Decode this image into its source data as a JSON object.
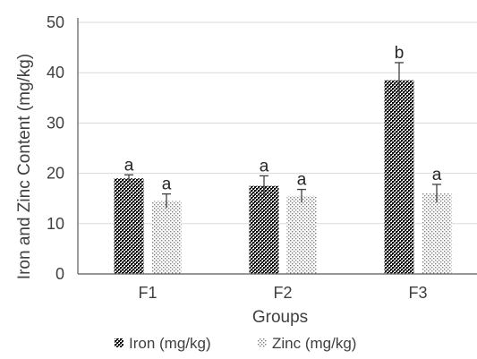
{
  "chart_data": {
    "type": "bar",
    "categories": [
      "F1",
      "F2",
      "F3"
    ],
    "series": [
      {
        "name": "Iron (mg/kg)",
        "values": [
          19,
          17.5,
          38.5
        ],
        "errors": [
          0.7,
          2.0,
          3.5
        ],
        "labels": [
          "a",
          "a",
          "b"
        ],
        "pattern": "dense-dark-dots"
      },
      {
        "name": "Zinc (mg/kg)",
        "values": [
          14.5,
          15.5,
          16
        ],
        "errors": [
          1.4,
          1.3,
          1.8
        ],
        "labels": [
          "a",
          "a",
          "a"
        ],
        "pattern": "sparse-light-dots"
      }
    ],
    "xlabel": "Groups",
    "ylabel": "Iron and Zinc Content (mg/kg)",
    "ylim": [
      0,
      50
    ],
    "yticks": [
      0,
      10,
      20,
      30,
      40,
      50
    ],
    "grid": true,
    "legend_position": "bottom",
    "colors": {
      "iron": "#1a1a1a",
      "zinc": "#a6a6a6",
      "grid": "#d9d9d9",
      "text": "#404040"
    }
  }
}
